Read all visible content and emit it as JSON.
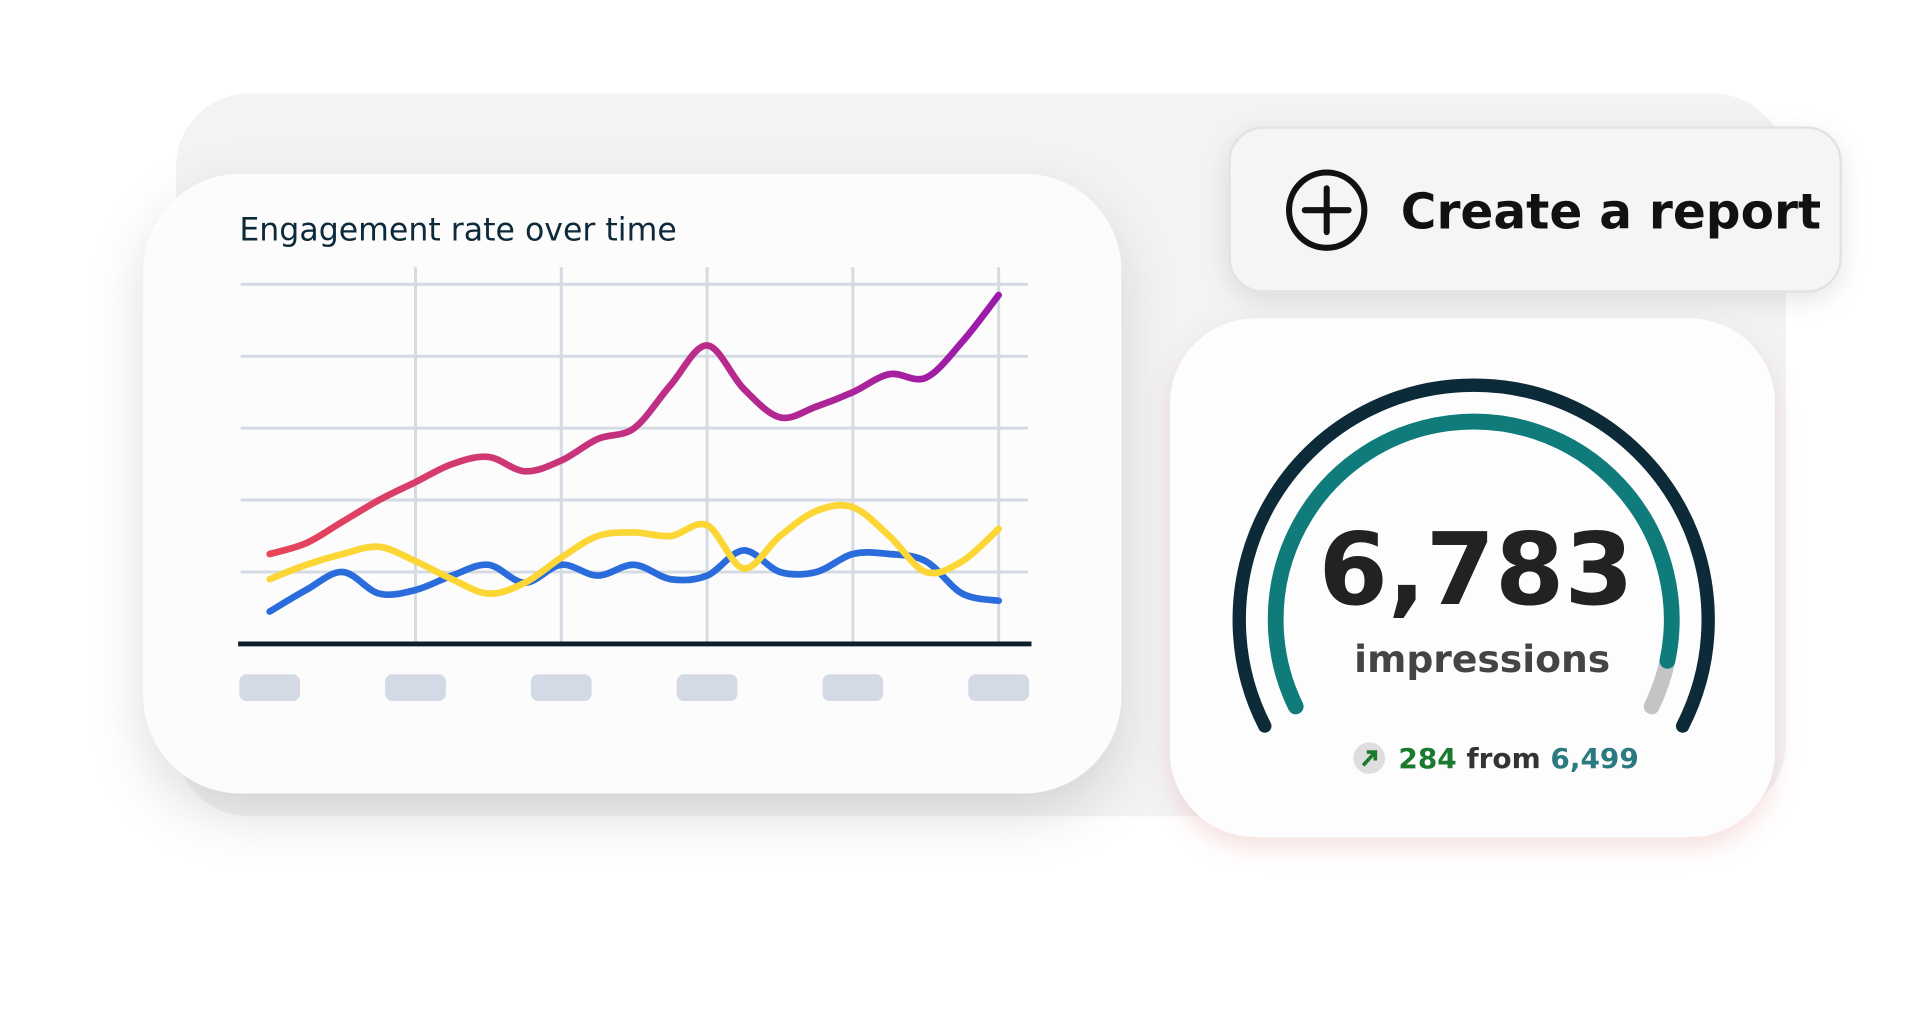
{
  "chart_data": {
    "type": "line",
    "title": "Engagement rate over time",
    "categories": [
      null,
      null,
      null,
      null,
      null,
      null
    ],
    "x": [
      0,
      0.25,
      0.5,
      0.75,
      1,
      1.25,
      1.5,
      1.75,
      2,
      2.25,
      2.5,
      2.75,
      3,
      3.25,
      3.5,
      3.75,
      4,
      4.25,
      4.5,
      4.75,
      5
    ],
    "xlim": [
      0,
      5
    ],
    "xticks": [
      0,
      1,
      2,
      3,
      4,
      5
    ],
    "ylim": [
      0,
      5
    ],
    "yticks": [
      1,
      2,
      3,
      4,
      5
    ],
    "grid": true,
    "series": [
      {
        "color": [
          "#e8455a",
          "#9a1aab"
        ],
        "values": [
          1.25,
          1.4,
          1.7,
          2.0,
          2.25,
          2.5,
          2.6,
          2.4,
          2.55,
          2.85,
          3.0,
          3.6,
          4.15,
          3.55,
          3.15,
          3.3,
          3.5,
          3.75,
          3.7,
          4.2,
          4.85
        ]
      },
      {
        "color": "#fbd635",
        "values": [
          0.9,
          1.1,
          1.25,
          1.35,
          1.15,
          0.9,
          0.7,
          0.85,
          1.2,
          1.5,
          1.55,
          1.5,
          1.65,
          1.05,
          1.5,
          1.85,
          1.9,
          1.5,
          1.0,
          1.15,
          1.6
        ]
      },
      {
        "color": "#2a6cdb",
        "values": [
          0.45,
          0.75,
          1.0,
          0.7,
          0.75,
          0.95,
          1.1,
          0.85,
          1.1,
          0.95,
          1.1,
          0.9,
          0.95,
          1.3,
          1.0,
          1.0,
          1.25,
          1.25,
          1.15,
          0.7,
          0.6
        ]
      }
    ]
  },
  "button": {
    "label": "Create a report"
  },
  "metric": {
    "value": "6,783",
    "label": "impressions",
    "change": "284",
    "from_text": "from",
    "previous": "6,499"
  }
}
